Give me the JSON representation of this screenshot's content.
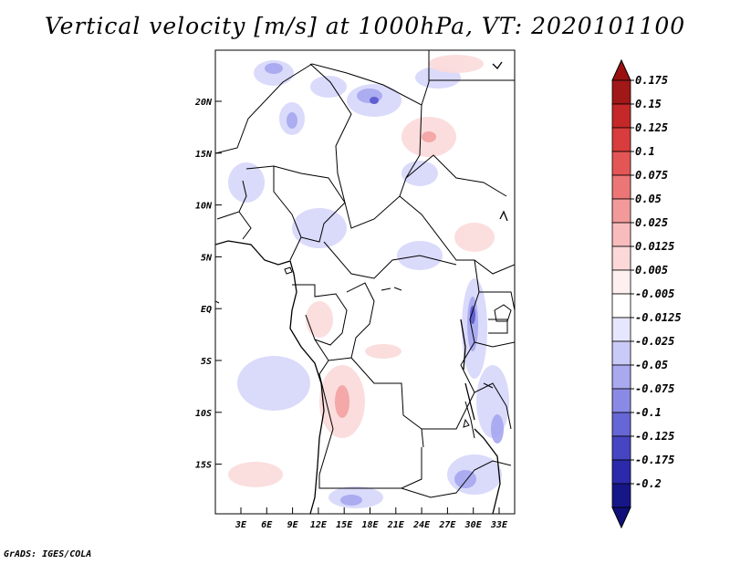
{
  "title": "Vertical velocity [m/s] at 1000hPa, VT: 2020101100",
  "credit": "GrADS: IGES/COLA",
  "map": {
    "lat_ticks": [
      "20N",
      "15N",
      "10N",
      "5N",
      "EQ",
      "5S",
      "10S",
      "15S"
    ],
    "lon_ticks": [
      "3E",
      "6E",
      "9E",
      "12E",
      "15E",
      "18E",
      "21E",
      "24E",
      "27E",
      "30E",
      "33E"
    ]
  },
  "colorbar": {
    "labels": [
      "0.175",
      "0.15",
      "0.125",
      "0.1",
      "0.075",
      "0.05",
      "0.025",
      "0.0125",
      "0.005",
      "-0.005",
      "-0.0125",
      "-0.025",
      "-0.05",
      "-0.075",
      "-0.1",
      "-0.125",
      "-0.175",
      "-0.2"
    ],
    "colors": [
      "#a01818",
      "#c42828",
      "#d83c3c",
      "#e45656",
      "#ec7676",
      "#f29a9a",
      "#f8bcbc",
      "#fcd8d8",
      "#fff0f0",
      "#ffffff",
      "#e6e6ff",
      "#cacaf8",
      "#a9a9f0",
      "#8a8ae6",
      "#6666d6",
      "#4646c2",
      "#2a2aaa",
      "#161688"
    ],
    "top_color": "#9a1010",
    "bottom_color": "#10107a"
  }
}
